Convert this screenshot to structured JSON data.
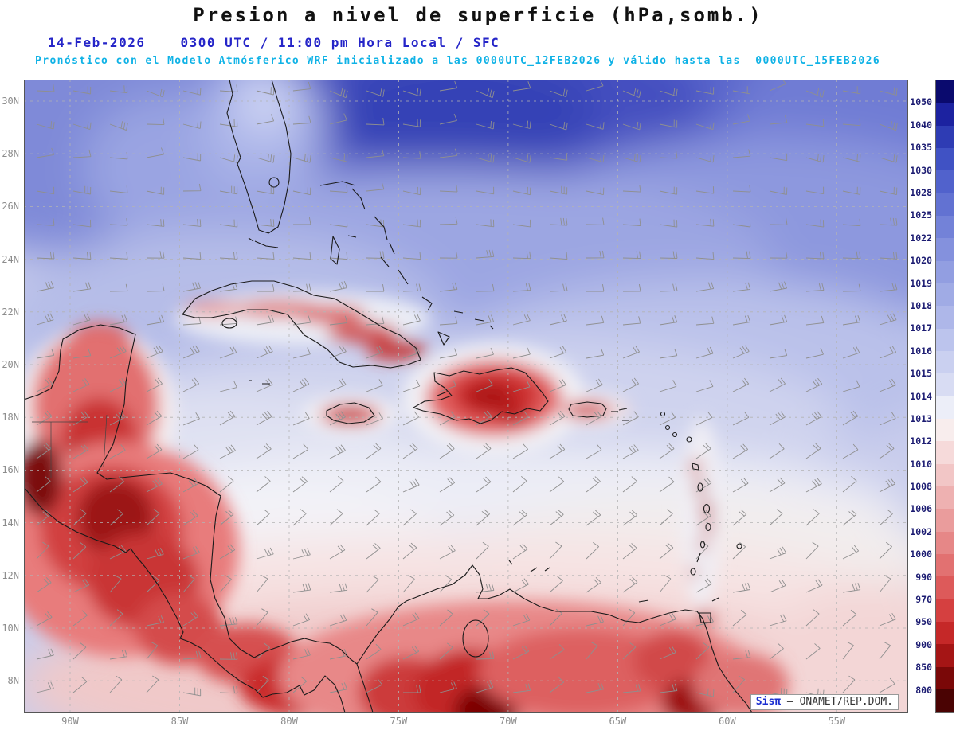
{
  "title": "Presion a nivel de superficie (hPa,somb.)",
  "header": {
    "date": "14-Feb-2026",
    "time": "0300 UTC / 11:00 pm Hora Local / SFC",
    "model_line": "Pronóstico con el Modelo Atmósferico WRF inicializado a las 0000UTC_12FEB2026 y válido hasta las  0000UTC_15FEB2026"
  },
  "map": {
    "lat_ticks": [
      "30N",
      "28N",
      "26N",
      "24N",
      "22N",
      "20N",
      "18N",
      "16N",
      "14N",
      "12N",
      "10N",
      "8N"
    ],
    "lon_ticks": [
      "90W",
      "85W",
      "80W",
      "75W",
      "70W",
      "65W",
      "60W",
      "55W"
    ],
    "watermark_brand": "Sisπ",
    "watermark_credit": " – ONAMET/REP.DOM."
  },
  "colorbar": {
    "unit": "hPa",
    "labels": [
      "1050",
      "1040",
      "1035",
      "1030",
      "1028",
      "1025",
      "1022",
      "1020",
      "1019",
      "1018",
      "1017",
      "1016",
      "1015",
      "1014",
      "1013",
      "1012",
      "1010",
      "1008",
      "1006",
      "1002",
      "1000",
      "990",
      "970",
      "950",
      "900",
      "850",
      "800"
    ],
    "colors": [
      "#0a0a6e",
      "#1c22a0",
      "#2e3cb4",
      "#4052c4",
      "#5162cc",
      "#6272d2",
      "#7382d8",
      "#8491dd",
      "#929ee1",
      "#a0abe5",
      "#aeb7e9",
      "#bcc4ed",
      "#cad0f0",
      "#d8dcf3",
      "#eceef8",
      "#f8eded",
      "#f6dada",
      "#f2c6c6",
      "#eeb1b1",
      "#ea9c9c",
      "#e68787",
      "#e27171",
      "#dd5a5a",
      "#d54040",
      "#c52828",
      "#a51515",
      "#7a0808",
      "#4a0303"
    ]
  }
}
